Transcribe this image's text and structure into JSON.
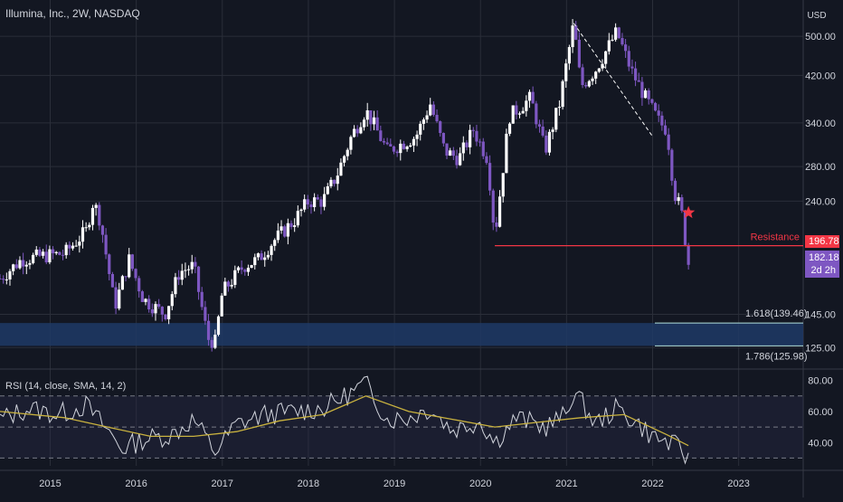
{
  "title": "Illumina, Inc., 2W, NASDAQ",
  "currency": "USD",
  "colors": {
    "background": "#131722",
    "grid": "#2a2e39",
    "bull": "#ffffff",
    "bear": "#7e57c2",
    "resistance": "#f23645",
    "zone": "#1f3a66",
    "fib_line": "#b2dfdb",
    "rsi_line": "#d1d4dc",
    "rsi_sma": "#c9b23f",
    "rsi_band": "#2a2a4a"
  },
  "chart_data": {
    "type": "candlestick",
    "y_scale": "log",
    "ylim": [
      115,
      560
    ],
    "price_ticks": [
      "500.00",
      "420.00",
      "340.00",
      "280.00",
      "240.00",
      "145.00",
      "125.00"
    ],
    "x_ticks": [
      "2015",
      "2016",
      "2017",
      "2018",
      "2019",
      "2020",
      "2021",
      "2022",
      "2023"
    ],
    "x_start": "2014-06",
    "x_end": "2023-10",
    "closes_approx": [
      {
        "date": "2014-06",
        "close": 170
      },
      {
        "date": "2014-09",
        "close": 185
      },
      {
        "date": "2014-12",
        "close": 188
      },
      {
        "date": "2015-03",
        "close": 190
      },
      {
        "date": "2015-06",
        "close": 210
      },
      {
        "date": "2015-07",
        "close": 240
      },
      {
        "date": "2015-08",
        "close": 220
      },
      {
        "date": "2015-10",
        "close": 150
      },
      {
        "date": "2015-12",
        "close": 185
      },
      {
        "date": "2016-02",
        "close": 155
      },
      {
        "date": "2016-05",
        "close": 145
      },
      {
        "date": "2016-07",
        "close": 175
      },
      {
        "date": "2016-09",
        "close": 180
      },
      {
        "date": "2016-11",
        "close": 130
      },
      {
        "date": "2016-12",
        "close": 128
      },
      {
        "date": "2017-01",
        "close": 160
      },
      {
        "date": "2017-04",
        "close": 180
      },
      {
        "date": "2017-06",
        "close": 185
      },
      {
        "date": "2017-08",
        "close": 200
      },
      {
        "date": "2017-11",
        "close": 220
      },
      {
        "date": "2018-01",
        "close": 240
      },
      {
        "date": "2018-03",
        "close": 240
      },
      {
        "date": "2018-05",
        "close": 270
      },
      {
        "date": "2018-07",
        "close": 320
      },
      {
        "date": "2018-09",
        "close": 360
      },
      {
        "date": "2018-10",
        "close": 340
      },
      {
        "date": "2018-12",
        "close": 300
      },
      {
        "date": "2019-02",
        "close": 310
      },
      {
        "date": "2019-04",
        "close": 320
      },
      {
        "date": "2019-06",
        "close": 370
      },
      {
        "date": "2019-08",
        "close": 300
      },
      {
        "date": "2019-10",
        "close": 290
      },
      {
        "date": "2019-12",
        "close": 330
      },
      {
        "date": "2020-02",
        "close": 290
      },
      {
        "date": "2020-03",
        "close": 205
      },
      {
        "date": "2020-05",
        "close": 350
      },
      {
        "date": "2020-08",
        "close": 380
      },
      {
        "date": "2020-10",
        "close": 300
      },
      {
        "date": "2020-12",
        "close": 370
      },
      {
        "date": "2021-02",
        "close": 530
      },
      {
        "date": "2021-03",
        "close": 400
      },
      {
        "date": "2021-05",
        "close": 430
      },
      {
        "date": "2021-08",
        "close": 510
      },
      {
        "date": "2021-10",
        "close": 430
      },
      {
        "date": "2021-12",
        "close": 380
      },
      {
        "date": "2022-02",
        "close": 340
      },
      {
        "date": "2022-03",
        "close": 330
      },
      {
        "date": "2022-04",
        "close": 250
      },
      {
        "date": "2022-05",
        "close": 230
      },
      {
        "date": "2022-06",
        "close": 182
      }
    ],
    "last_price": "182.18",
    "last_price_countdown": "2d 2h",
    "resistance": {
      "label": "Resistance",
      "value": 196.78,
      "value_label": "196.78",
      "start_date": "2020-03"
    },
    "fib_levels": [
      {
        "label": "1.618(139.46)",
        "value": 139.46
      },
      {
        "label": "1.786(125.98)",
        "value": 125.98
      }
    ],
    "demand_zone": {
      "low": 125.98,
      "high": 139.46
    },
    "trendline": {
      "from": {
        "date": "2021-02",
        "value": 530
      },
      "to": {
        "date": "2022-01",
        "value": 320
      }
    },
    "marker": {
      "shape": "star",
      "date": "2022-06",
      "value": 228
    },
    "rsi": {
      "label": "RSI (14, close, SMA, 14, 2)",
      "ticks": [
        "80.00",
        "60.00",
        "40.00"
      ],
      "ylim": [
        25,
        85
      ],
      "bands": [
        30,
        50,
        70
      ],
      "values": [
        {
          "date": "2014-06",
          "value": 55
        },
        {
          "date": "2014-10",
          "value": 62
        },
        {
          "date": "2015-02",
          "value": 58
        },
        {
          "date": "2015-06",
          "value": 64
        },
        {
          "date": "2015-09",
          "value": 48
        },
        {
          "date": "2015-11",
          "value": 36
        },
        {
          "date": "2016-02",
          "value": 42
        },
        {
          "date": "2016-06",
          "value": 45
        },
        {
          "date": "2016-09",
          "value": 55
        },
        {
          "date": "2016-12",
          "value": 34
        },
        {
          "date": "2017-03",
          "value": 52
        },
        {
          "date": "2017-07",
          "value": 58
        },
        {
          "date": "2017-11",
          "value": 60
        },
        {
          "date": "2018-03",
          "value": 62
        },
        {
          "date": "2018-07",
          "value": 72
        },
        {
          "date": "2018-09",
          "value": 78
        },
        {
          "date": "2018-12",
          "value": 55
        },
        {
          "date": "2019-03",
          "value": 56
        },
        {
          "date": "2019-06",
          "value": 62
        },
        {
          "date": "2019-09",
          "value": 48
        },
        {
          "date": "2020-01",
          "value": 54
        },
        {
          "date": "2020-03",
          "value": 40
        },
        {
          "date": "2020-06",
          "value": 56
        },
        {
          "date": "2020-10",
          "value": 50
        },
        {
          "date": "2021-01",
          "value": 58
        },
        {
          "date": "2021-02",
          "value": 74
        },
        {
          "date": "2021-05",
          "value": 52
        },
        {
          "date": "2021-08",
          "value": 62
        },
        {
          "date": "2021-11",
          "value": 52
        },
        {
          "date": "2022-01",
          "value": 44
        },
        {
          "date": "2022-03",
          "value": 40
        },
        {
          "date": "2022-05",
          "value": 36
        },
        {
          "date": "2022-06",
          "value": 28
        }
      ],
      "sma": [
        {
          "date": "2014-06",
          "value": 60
        },
        {
          "date": "2015-03",
          "value": 56
        },
        {
          "date": "2015-09",
          "value": 50
        },
        {
          "date": "2016-03",
          "value": 44
        },
        {
          "date": "2016-09",
          "value": 44
        },
        {
          "date": "2017-03",
          "value": 47
        },
        {
          "date": "2017-09",
          "value": 54
        },
        {
          "date": "2018-03",
          "value": 58
        },
        {
          "date": "2018-09",
          "value": 70
        },
        {
          "date": "2019-03",
          "value": 60
        },
        {
          "date": "2019-09",
          "value": 55
        },
        {
          "date": "2020-03",
          "value": 50
        },
        {
          "date": "2020-09",
          "value": 53
        },
        {
          "date": "2021-03",
          "value": 56
        },
        {
          "date": "2021-09",
          "value": 58
        },
        {
          "date": "2022-03",
          "value": 45
        },
        {
          "date": "2022-06",
          "value": 38
        }
      ]
    }
  }
}
